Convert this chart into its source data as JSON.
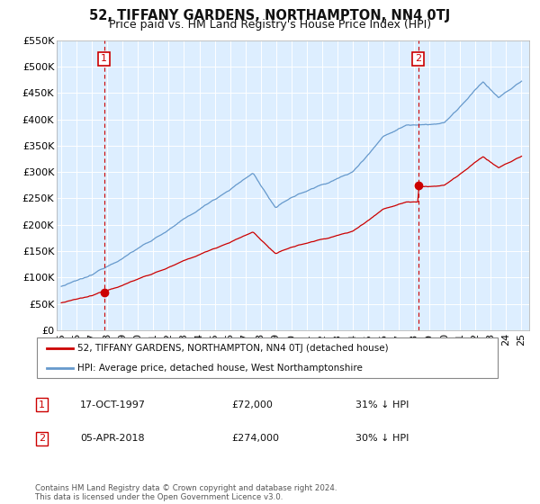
{
  "title": "52, TIFFANY GARDENS, NORTHAMPTON, NN4 0TJ",
  "subtitle": "Price paid vs. HM Land Registry's House Price Index (HPI)",
  "legend_line1": "52, TIFFANY GARDENS, NORTHAMPTON, NN4 0TJ (detached house)",
  "legend_line2": "HPI: Average price, detached house, West Northamptonshire",
  "note": "Contains HM Land Registry data © Crown copyright and database right 2024.\nThis data is licensed under the Open Government Licence v3.0.",
  "purchase1_label": "1",
  "purchase1_date": "17-OCT-1997",
  "purchase1_price": "£72,000",
  "purchase1_hpi": "31% ↓ HPI",
  "purchase1_year": 1997.79,
  "purchase1_value": 72000,
  "purchase2_label": "2",
  "purchase2_date": "05-APR-2018",
  "purchase2_price": "£274,000",
  "purchase2_hpi": "30% ↓ HPI",
  "purchase2_year": 2018.26,
  "purchase2_value": 274000,
  "ylim": [
    0,
    550000
  ],
  "yticks": [
    0,
    50000,
    100000,
    150000,
    200000,
    250000,
    300000,
    350000,
    400000,
    450000,
    500000,
    550000
  ],
  "ytick_labels": [
    "£0",
    "£50K",
    "£100K",
    "£150K",
    "£200K",
    "£250K",
    "£300K",
    "£350K",
    "£400K",
    "£450K",
    "£500K",
    "£550K"
  ],
  "xlim_start": 1994.7,
  "xlim_end": 2025.5,
  "red_color": "#cc0000",
  "blue_color": "#6699cc",
  "plot_bg_color": "#ddeeff",
  "bg_color": "#ffffff",
  "grid_color": "#ffffff",
  "title_fontsize": 10.5,
  "subtitle_fontsize": 9,
  "axis_fontsize": 8
}
